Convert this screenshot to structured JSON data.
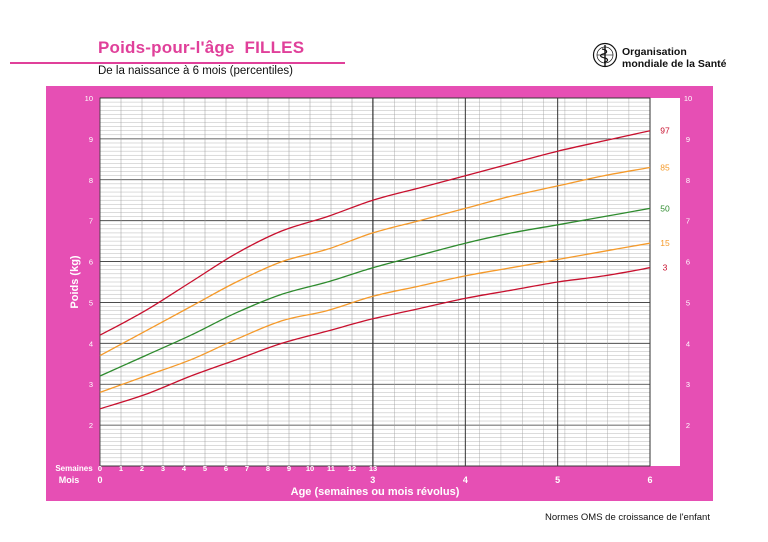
{
  "header": {
    "title": "Poids-pour-l'âge  FILLES",
    "subtitle": "De la naissance à 6 mois (percentiles)",
    "org_line1": "Organisation",
    "org_line2": "mondiale de la Santé",
    "logo_icon": "who-emblem-icon"
  },
  "footer": {
    "note": "Normes OMS de croissance de l'enfant"
  },
  "colors": {
    "frame": "#e64fb4",
    "plot_bg": "#ffffff",
    "p97": "#c8102e",
    "p85": "#f59a2a",
    "p50": "#2e8b2e",
    "p15": "#f59a2a",
    "p3": "#c8102e",
    "grid_minor": "#9a9a9a",
    "grid_major": "#333333"
  },
  "chart_data": {
    "type": "line",
    "title": "Poids-pour-l'âge  FILLES",
    "subtitle": "De la naissance à 6 mois (percentiles)",
    "xlabel": "Age (semaines ou mois révolus)",
    "ylabel": "Poids (kg)",
    "x_unit": "mois",
    "xlim": [
      0,
      6
    ],
    "ylim": [
      1,
      10
    ],
    "y_ticks": [
      "2",
      "3",
      "4",
      "5",
      "6",
      "7",
      "8",
      "9",
      "10"
    ],
    "x_row_label_weeks": "Semaines",
    "x_row_label_months": "Mois",
    "week_ticks": [
      "0",
      "1",
      "2",
      "3",
      "4",
      "5",
      "6",
      "7",
      "8",
      "9",
      "10",
      "11",
      "12",
      "13"
    ],
    "month_ticks": [
      "0",
      "3",
      "4",
      "5",
      "6"
    ],
    "grid": true,
    "legend": "right",
    "x": [
      0,
      0.5,
      1,
      1.5,
      2,
      2.5,
      3,
      3.5,
      4,
      4.5,
      5,
      5.5,
      6
    ],
    "series": [
      {
        "name": "97",
        "values": [
          4.2,
          4.8,
          5.5,
          6.2,
          6.75,
          7.1,
          7.5,
          7.8,
          8.1,
          8.4,
          8.7,
          8.95,
          9.2
        ]
      },
      {
        "name": "85",
        "values": [
          3.7,
          4.3,
          4.9,
          5.5,
          6.0,
          6.3,
          6.7,
          7.0,
          7.3,
          7.6,
          7.85,
          8.1,
          8.3
        ]
      },
      {
        "name": "50",
        "values": [
          3.2,
          3.7,
          4.2,
          4.75,
          5.2,
          5.5,
          5.85,
          6.15,
          6.45,
          6.7,
          6.9,
          7.1,
          7.3
        ]
      },
      {
        "name": "15",
        "values": [
          2.8,
          3.2,
          3.6,
          4.1,
          4.55,
          4.8,
          5.15,
          5.4,
          5.65,
          5.85,
          6.05,
          6.25,
          6.45
        ]
      },
      {
        "name": "3",
        "values": [
          2.4,
          2.75,
          3.2,
          3.6,
          4.0,
          4.3,
          4.6,
          4.85,
          5.1,
          5.3,
          5.5,
          5.65,
          5.85
        ]
      }
    ]
  }
}
